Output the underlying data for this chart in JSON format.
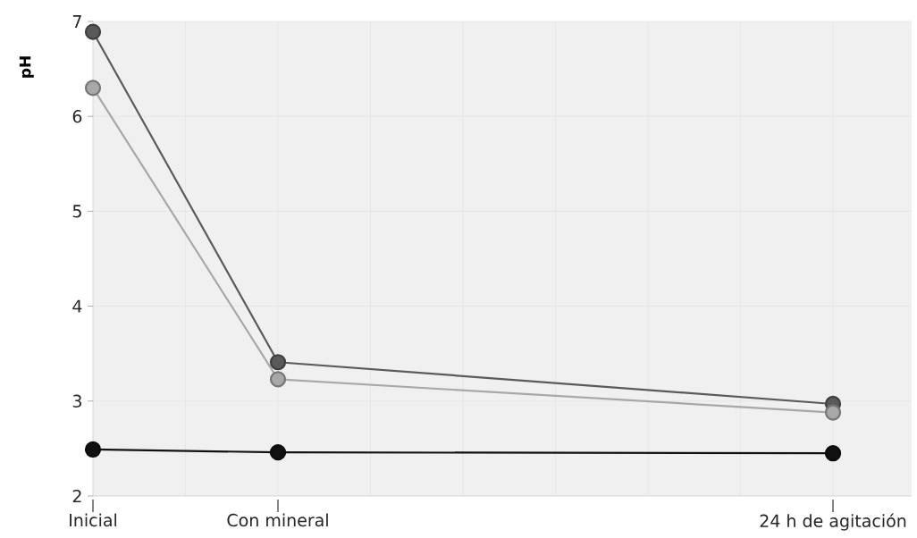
{
  "chart_data": {
    "type": "line",
    "ylabel": "pH",
    "categories": [
      "Inicial",
      null,
      "Con mineral",
      null,
      null,
      null,
      null,
      null,
      "24 h de agitación"
    ],
    "series": [
      {
        "color": "#5a5a5a",
        "values": [
          6.89,
          null,
          3.41,
          null,
          null,
          null,
          null,
          null,
          2.97
        ]
      },
      {
        "color": "#a8a8a8",
        "values": [
          6.3,
          null,
          3.23,
          null,
          null,
          null,
          null,
          null,
          2.88
        ]
      },
      {
        "color": "#111111",
        "values": [
          2.49,
          null,
          2.46,
          null,
          null,
          null,
          null,
          null,
          2.45
        ]
      }
    ],
    "ylim": [
      2,
      7
    ],
    "yticks": [
      2,
      3,
      4,
      5,
      6,
      7
    ],
    "grid": true,
    "marker": "circle",
    "line_style": "solid"
  }
}
